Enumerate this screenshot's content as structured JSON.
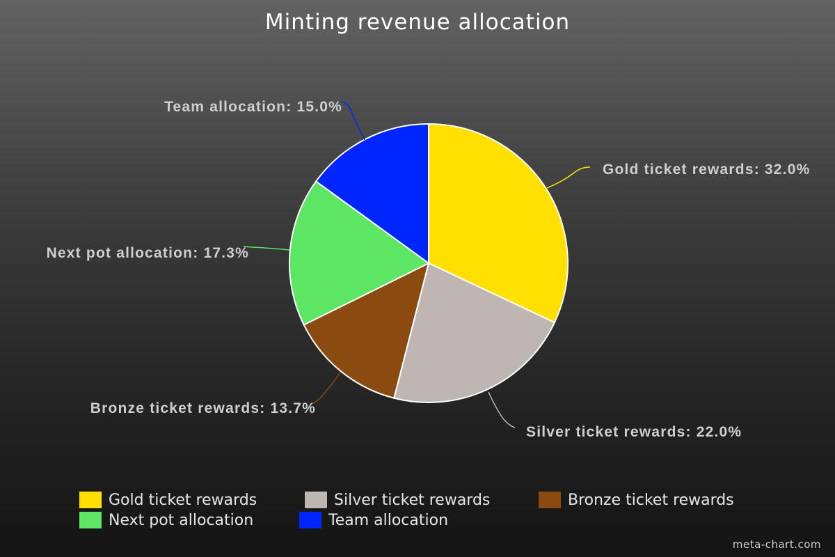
{
  "chart_data": {
    "type": "pie",
    "title": "Minting revenue allocation",
    "slices": [
      {
        "name": "Gold ticket rewards",
        "value": 32.0,
        "label": "Gold ticket rewards: 32.0%",
        "color": "#FFE000"
      },
      {
        "name": "Silver ticket rewards",
        "value": 22.0,
        "label": "Silver ticket rewards: 22.0%",
        "color": "#BDB6B3"
      },
      {
        "name": "Bronze ticket rewards",
        "value": 13.7,
        "label": "Bronze ticket rewards: 13.7%",
        "color": "#8A4A10"
      },
      {
        "name": "Next pot allocation",
        "value": 17.3,
        "label": "Next pot allocation: 17.3%",
        "color": "#5CE664"
      },
      {
        "name": "Team allocation",
        "value": 15.0,
        "label": "Team allocation: 15.0%",
        "color": "#0026FF"
      }
    ],
    "legend_placement": "bottom"
  },
  "legend": {
    "items": [
      {
        "label": "Gold ticket rewards",
        "color": "#FFE000"
      },
      {
        "label": "Silver ticket rewards",
        "color": "#BDB6B3"
      },
      {
        "label": "Bronze ticket rewards",
        "color": "#8A4A10"
      },
      {
        "label": "Next pot allocation",
        "color": "#5CE664"
      },
      {
        "label": "Team allocation",
        "color": "#0026FF"
      }
    ]
  },
  "watermark": "meta-chart.com"
}
